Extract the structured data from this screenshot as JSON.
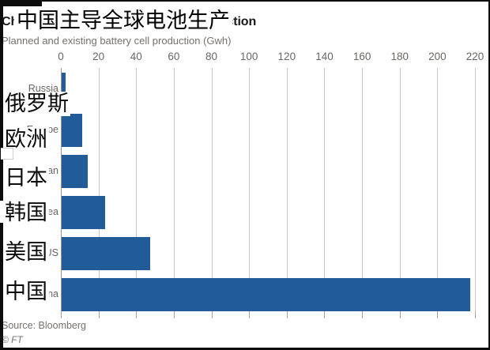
{
  "header": {
    "title_en": "China dominates global battery production",
    "title_zh": "中国主导全球电池生产",
    "subtitle": "Planned and existing battery cell production (Gwh)"
  },
  "chart_data": {
    "type": "bar",
    "orientation": "horizontal",
    "title": "China dominates global battery production",
    "title_zh": "中国主导全球电池生产",
    "subtitle": "Planned and existing battery cell production (Gwh)",
    "unit": "Gwh",
    "xlim": [
      0,
      220
    ],
    "xticks": [
      0,
      20,
      40,
      60,
      80,
      100,
      120,
      140,
      160,
      180,
      200,
      220
    ],
    "grid": true,
    "legend": false,
    "bar_color": "#215c98",
    "categories": [
      {
        "label_en": "Russia",
        "label_zh": "俄罗斯",
        "value": 2
      },
      {
        "label_en": "Europe",
        "label_zh": "欧洲",
        "value": 11
      },
      {
        "label_en": "Japan",
        "label_zh": "日本",
        "value": 14
      },
      {
        "label_en": "S Korea",
        "label_zh": "韩国",
        "value": 23
      },
      {
        "label_en": "US",
        "label_zh": "美国",
        "value": 47
      },
      {
        "label_en": "China",
        "label_zh": "中国",
        "value": 217
      }
    ]
  },
  "footer": {
    "source": "Source: Bloomberg",
    "credit": "© FT"
  },
  "palette": {
    "bar": "#215c98",
    "gridline": "#ccc8c2",
    "frame": "#0c0c0c",
    "muted_text": "#76726d"
  }
}
